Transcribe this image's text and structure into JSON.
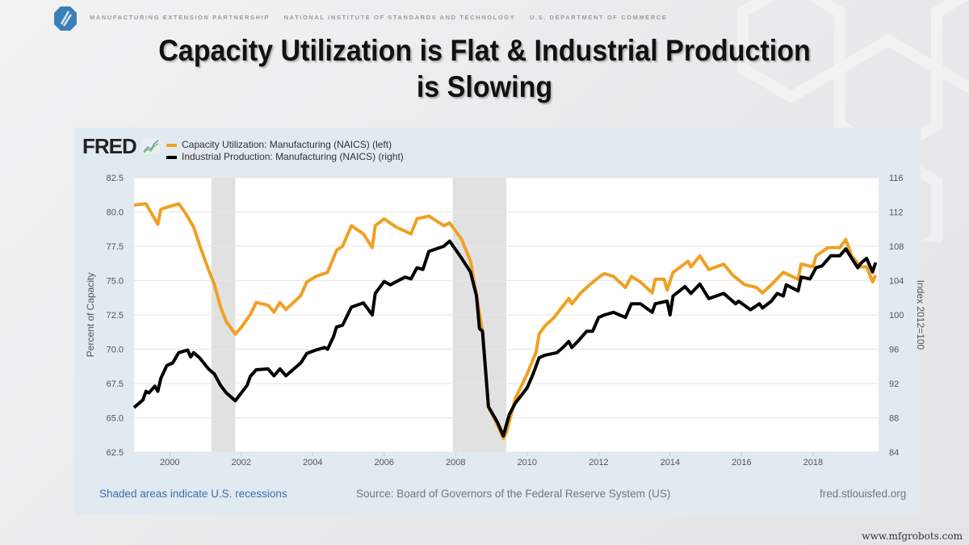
{
  "header": {
    "org_items": [
      "MANUFACTURING EXTENSION PARTNERSHIP",
      "NATIONAL INSTITUTE OF STANDARDS AND TECHNOLOGY",
      "U.S. DEPARTMENT OF COMMERCE"
    ],
    "logo_icon": "nist-mep-logo-icon"
  },
  "slide": {
    "title_line1": "Capacity Utilization is Flat & Industrial Production",
    "title_line2": "is Slowing"
  },
  "fred": {
    "brand": "FRED",
    "brand_icon": "fred-chart-icon",
    "footer_note": "Shaded areas indicate U.S. recessions",
    "source": "Source: Board of Governors of the Federal Reserve System (US)",
    "site": "fred.stlouisfed.org"
  },
  "watermark": "www.mfgrobots.com",
  "colors": {
    "cap_util": "#f0a023",
    "ind_prod": "#000000",
    "recession": "#e1e1e1",
    "note_link": "#3d6ea8"
  },
  "chart_data": {
    "type": "line",
    "xlim": [
      "1999-01",
      "2019-11"
    ],
    "x_ticks": [
      "2000",
      "2002",
      "2004",
      "2006",
      "2008",
      "2010",
      "2012",
      "2014",
      "2016",
      "2018"
    ],
    "grid": true,
    "legend_placement": "top-left",
    "recessions": [
      [
        "2001-03",
        "2001-11"
      ],
      [
        "2007-12",
        "2009-06"
      ]
    ],
    "left_axis": {
      "label": "Percent of Capacity",
      "ylim": [
        62.5,
        82.5
      ],
      "ticks": [
        "62.5",
        "65.0",
        "67.5",
        "70.0",
        "72.5",
        "75.0",
        "77.5",
        "80.0",
        "82.5"
      ]
    },
    "right_axis": {
      "label": "Index 2012=100",
      "ylim": [
        84,
        116
      ],
      "ticks": [
        "84",
        "88",
        "92",
        "96",
        "100",
        "104",
        "108",
        "112",
        "116"
      ]
    },
    "series": [
      {
        "name": "Capacity Utilization: Manufacturing (NAICS) (left)",
        "axis": "left",
        "color": "#f0a023",
        "points": [
          [
            "1999-01",
            80.5
          ],
          [
            "1999-05",
            80.6
          ],
          [
            "1999-09",
            79.1
          ],
          [
            "1999-10",
            80.2
          ],
          [
            "2000-04",
            80.6
          ],
          [
            "2000-06",
            80.0
          ],
          [
            "2000-09",
            78.9
          ],
          [
            "2000-11",
            77.6
          ],
          [
            "2001-02",
            75.8
          ],
          [
            "2001-04",
            74.7
          ],
          [
            "2001-06",
            73.1
          ],
          [
            "2001-08",
            72.0
          ],
          [
            "2001-11",
            71.1
          ],
          [
            "2002-01",
            71.6
          ],
          [
            "2002-04",
            72.5
          ],
          [
            "2002-06",
            73.4
          ],
          [
            "2002-10",
            73.2
          ],
          [
            "2002-12",
            72.7
          ],
          [
            "2003-02",
            73.4
          ],
          [
            "2003-04",
            72.9
          ],
          [
            "2003-09",
            73.9
          ],
          [
            "2003-11",
            74.9
          ],
          [
            "2004-02",
            75.3
          ],
          [
            "2004-06",
            75.6
          ],
          [
            "2004-09",
            77.2
          ],
          [
            "2004-11",
            77.5
          ],
          [
            "2005-02",
            79.0
          ],
          [
            "2005-06",
            78.4
          ],
          [
            "2005-09",
            77.4
          ],
          [
            "2005-10",
            79.0
          ],
          [
            "2006-01",
            79.5
          ],
          [
            "2006-05",
            78.9
          ],
          [
            "2006-10",
            78.4
          ],
          [
            "2006-12",
            79.5
          ],
          [
            "2007-04",
            79.7
          ],
          [
            "2007-09",
            79.0
          ],
          [
            "2007-11",
            79.2
          ],
          [
            "2008-03",
            78.0
          ],
          [
            "2008-06",
            76.4
          ],
          [
            "2008-08",
            73.9
          ],
          [
            "2008-10",
            71.3
          ],
          [
            "2008-12",
            65.8
          ],
          [
            "2009-03",
            64.5
          ],
          [
            "2009-05",
            63.5
          ],
          [
            "2009-06",
            63.9
          ],
          [
            "2009-09",
            66.4
          ],
          [
            "2010-01",
            68.2
          ],
          [
            "2010-04",
            69.8
          ],
          [
            "2010-05",
            71.1
          ],
          [
            "2010-07",
            71.7
          ],
          [
            "2010-10",
            72.3
          ],
          [
            "2011-03",
            73.7
          ],
          [
            "2011-04",
            73.3
          ],
          [
            "2011-07",
            74.1
          ],
          [
            "2011-10",
            74.7
          ],
          [
            "2012-02",
            75.4
          ],
          [
            "2012-03",
            75.5
          ],
          [
            "2012-06",
            75.3
          ],
          [
            "2012-10",
            74.5
          ],
          [
            "2012-12",
            75.3
          ],
          [
            "2013-03",
            74.9
          ],
          [
            "2013-07",
            74.1
          ],
          [
            "2013-08",
            75.1
          ],
          [
            "2013-11",
            75.1
          ],
          [
            "2013-12",
            74.3
          ],
          [
            "2014-02",
            75.6
          ],
          [
            "2014-07",
            76.4
          ],
          [
            "2014-08",
            76.0
          ],
          [
            "2014-11",
            76.8
          ],
          [
            "2015-02",
            75.8
          ],
          [
            "2015-07",
            76.2
          ],
          [
            "2015-10",
            75.4
          ],
          [
            "2016-02",
            74.7
          ],
          [
            "2016-06",
            74.5
          ],
          [
            "2016-08",
            74.1
          ],
          [
            "2016-11",
            74.7
          ],
          [
            "2017-03",
            75.6
          ],
          [
            "2017-05",
            75.4
          ],
          [
            "2017-08",
            75.1
          ],
          [
            "2017-09",
            76.2
          ],
          [
            "2018-01",
            76.0
          ],
          [
            "2018-02",
            76.8
          ],
          [
            "2018-06",
            77.4
          ],
          [
            "2018-10",
            77.4
          ],
          [
            "2018-12",
            78.0
          ],
          [
            "2019-02",
            76.8
          ],
          [
            "2019-05",
            76.0
          ],
          [
            "2019-07",
            76.0
          ],
          [
            "2019-09",
            74.9
          ],
          [
            "2019-10",
            75.4
          ]
        ]
      },
      {
        "name": "Industrial Production: Manufacturing (NAICS) (right)",
        "axis": "right",
        "color": "#000000",
        "points": [
          [
            "1999-01",
            89.2
          ],
          [
            "1999-04",
            90.1
          ],
          [
            "1999-05",
            91.1
          ],
          [
            "1999-06",
            90.9
          ],
          [
            "1999-08",
            91.7
          ],
          [
            "1999-09",
            91.1
          ],
          [
            "1999-10",
            92.6
          ],
          [
            "1999-12",
            94.1
          ],
          [
            "2000-02",
            94.4
          ],
          [
            "2000-04",
            95.6
          ],
          [
            "2000-07",
            95.9
          ],
          [
            "2000-08",
            95.1
          ],
          [
            "2000-09",
            95.6
          ],
          [
            "2000-11",
            95.0
          ],
          [
            "2001-02",
            93.7
          ],
          [
            "2001-04",
            93.1
          ],
          [
            "2001-06",
            91.8
          ],
          [
            "2001-08",
            90.9
          ],
          [
            "2001-11",
            90.0
          ],
          [
            "2002-01",
            90.9
          ],
          [
            "2002-03",
            91.8
          ],
          [
            "2002-04",
            92.8
          ],
          [
            "2002-06",
            93.6
          ],
          [
            "2002-10",
            93.7
          ],
          [
            "2002-12",
            92.9
          ],
          [
            "2003-02",
            93.7
          ],
          [
            "2003-04",
            92.9
          ],
          [
            "2003-09",
            94.4
          ],
          [
            "2003-11",
            95.5
          ],
          [
            "2004-02",
            95.9
          ],
          [
            "2004-05",
            96.2
          ],
          [
            "2004-06",
            96.0
          ],
          [
            "2004-08",
            97.5
          ],
          [
            "2004-09",
            98.6
          ],
          [
            "2004-11",
            98.8
          ],
          [
            "2005-02",
            100.9
          ],
          [
            "2005-06",
            101.4
          ],
          [
            "2005-09",
            100.0
          ],
          [
            "2005-10",
            102.5
          ],
          [
            "2006-01",
            103.9
          ],
          [
            "2006-03",
            103.5
          ],
          [
            "2006-08",
            104.4
          ],
          [
            "2006-10",
            104.2
          ],
          [
            "2006-12",
            105.5
          ],
          [
            "2007-02",
            105.3
          ],
          [
            "2007-04",
            107.4
          ],
          [
            "2007-09",
            108.0
          ],
          [
            "2007-11",
            108.6
          ],
          [
            "2008-03",
            106.6
          ],
          [
            "2008-06",
            105.0
          ],
          [
            "2008-08",
            102.2
          ],
          [
            "2008-09",
            98.4
          ],
          [
            "2008-10",
            98.1
          ],
          [
            "2008-12",
            89.3
          ],
          [
            "2009-03",
            87.5
          ],
          [
            "2009-05",
            85.9
          ],
          [
            "2009-07",
            88.4
          ],
          [
            "2009-09",
            89.7
          ],
          [
            "2009-11",
            90.6
          ],
          [
            "2010-01",
            91.5
          ],
          [
            "2010-03",
            93.1
          ],
          [
            "2010-05",
            95.0
          ],
          [
            "2010-07",
            95.3
          ],
          [
            "2010-11",
            95.6
          ],
          [
            "2011-01",
            96.2
          ],
          [
            "2011-03",
            96.9
          ],
          [
            "2011-04",
            96.2
          ],
          [
            "2011-06",
            96.9
          ],
          [
            "2011-09",
            98.1
          ],
          [
            "2011-11",
            98.1
          ],
          [
            "2012-01",
            99.7
          ],
          [
            "2012-03",
            100.0
          ],
          [
            "2012-06",
            100.3
          ],
          [
            "2012-10",
            99.7
          ],
          [
            "2012-12",
            101.3
          ],
          [
            "2013-03",
            101.3
          ],
          [
            "2013-07",
            100.3
          ],
          [
            "2013-08",
            101.3
          ],
          [
            "2013-12",
            101.6
          ],
          [
            "2014-01",
            100.0
          ],
          [
            "2014-02",
            102.2
          ],
          [
            "2014-06",
            103.3
          ],
          [
            "2014-08",
            102.5
          ],
          [
            "2014-11",
            103.6
          ],
          [
            "2015-02",
            101.9
          ],
          [
            "2015-07",
            102.5
          ],
          [
            "2015-11",
            101.3
          ],
          [
            "2015-12",
            101.6
          ],
          [
            "2016-04",
            100.6
          ],
          [
            "2016-07",
            101.3
          ],
          [
            "2016-08",
            100.8
          ],
          [
            "2016-11",
            101.6
          ],
          [
            "2017-01",
            102.5
          ],
          [
            "2017-03",
            102.2
          ],
          [
            "2017-04",
            103.5
          ],
          [
            "2017-08",
            102.8
          ],
          [
            "2017-09",
            104.4
          ],
          [
            "2017-12",
            104.2
          ],
          [
            "2018-02",
            105.5
          ],
          [
            "2018-04",
            105.7
          ],
          [
            "2018-07",
            106.9
          ],
          [
            "2018-10",
            106.9
          ],
          [
            "2018-12",
            107.7
          ],
          [
            "2019-02",
            106.6
          ],
          [
            "2019-04",
            105.5
          ],
          [
            "2019-05",
            106.0
          ],
          [
            "2019-07",
            106.6
          ],
          [
            "2019-09",
            105.0
          ],
          [
            "2019-10",
            106.1
          ]
        ]
      }
    ]
  }
}
